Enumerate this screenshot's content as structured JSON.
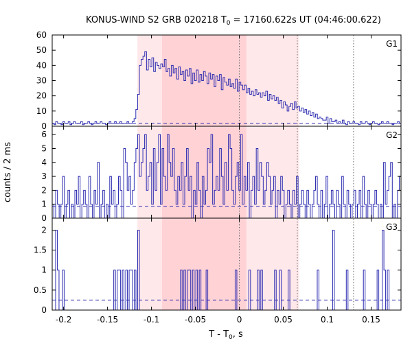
{
  "chart_data": {
    "type": "line",
    "title_main": "KONUS-WIND S2 GRB 020218 T",
    "title_sub": "0",
    "title_rest": " = 17160.622s UT (04:46:00.622)",
    "ylabel": "counts / 2 ms",
    "xlabel_main": "T - T",
    "xlabel_sub": "0",
    "xlabel_rest": ", s",
    "xlim": [
      -0.213,
      0.184
    ],
    "x_ticks": [
      -0.2,
      -0.15,
      -0.1,
      -0.05,
      0,
      0.05,
      0.1,
      0.15
    ],
    "x_tick_labels": [
      "-0.2",
      "-0.15",
      "-0.1",
      "-0.05",
      "0",
      "0.05",
      "0.1",
      "0.15"
    ],
    "shaded_regions": [
      {
        "from": -0.116,
        "to": 0.068,
        "color": "#ffe8ea"
      },
      {
        "from": -0.088,
        "to": 0.008,
        "color": "#ffd2d6"
      }
    ],
    "vertical_lines": [
      0,
      0.066,
      0.13
    ],
    "colors": {
      "data": "#2b2bb0",
      "background_level": "#2b2bb0",
      "markers": "#666666"
    },
    "panels": [
      {
        "name": "G1",
        "ylim": [
          0,
          60
        ],
        "y_ticks": [
          0,
          10,
          20,
          30,
          40,
          50,
          60
        ],
        "y_tick_labels": [
          "0",
          "10",
          "20",
          "30",
          "40",
          "50",
          "60"
        ],
        "background": 2,
        "values": [
          2,
          1,
          3,
          2,
          2,
          1,
          3,
          2,
          2,
          3,
          1,
          2,
          3,
          2,
          2,
          2,
          3,
          1,
          2,
          2,
          3,
          2,
          1,
          2,
          3,
          2,
          2,
          3,
          2,
          2,
          1,
          2,
          3,
          2,
          2,
          3,
          2,
          2,
          3,
          2,
          2,
          2,
          3,
          2,
          2,
          3,
          5,
          11,
          21,
          40,
          44,
          46,
          49,
          37,
          44,
          39,
          45,
          36,
          42,
          40,
          38,
          41,
          39,
          44,
          36,
          38,
          33,
          40,
          35,
          38,
          31,
          39,
          34,
          36,
          30,
          37,
          33,
          38,
          28,
          35,
          30,
          37,
          29,
          34,
          30,
          36,
          33,
          28,
          35,
          31,
          34,
          26,
          33,
          30,
          34,
          24,
          32,
          29,
          27,
          31,
          26,
          28,
          25,
          31,
          23,
          29,
          27,
          24,
          27,
          22,
          25,
          21,
          23,
          20,
          24,
          21,
          22,
          19,
          22,
          20,
          23,
          17,
          21,
          18,
          20,
          17,
          19,
          15,
          17,
          12,
          16,
          14,
          10,
          13,
          15,
          11,
          16,
          12,
          13,
          10,
          12,
          9,
          11,
          8,
          10,
          7,
          9,
          6,
          8,
          5,
          6,
          5,
          4,
          4,
          6,
          2,
          5,
          3,
          3,
          4,
          2,
          3,
          2,
          4,
          2,
          1,
          3,
          2,
          2,
          3,
          2,
          2,
          1,
          3,
          2,
          2,
          3,
          2,
          1,
          2,
          3,
          2,
          2,
          1,
          2,
          3,
          2,
          2,
          3,
          2,
          2,
          1,
          2,
          2,
          3,
          2
        ]
      },
      {
        "name": "G2",
        "ylim": [
          0,
          6.6
        ],
        "y_ticks": [
          0,
          1,
          2,
          3,
          4,
          5,
          6
        ],
        "y_tick_labels": [
          "0",
          "1",
          "2",
          "3",
          "4",
          "5",
          "6"
        ],
        "background": 0.85,
        "values": [
          1,
          0,
          2,
          1,
          0,
          1,
          3,
          0,
          1,
          2,
          0,
          1,
          0,
          2,
          1,
          3,
          0,
          1,
          2,
          1,
          0,
          3,
          1,
          0,
          2,
          1,
          4,
          0,
          1,
          2,
          0,
          1,
          0,
          3,
          1,
          2,
          0,
          1,
          3,
          2,
          0,
          5,
          4,
          2,
          3,
          1,
          2,
          4,
          5,
          6,
          3,
          4,
          5,
          6,
          2,
          3,
          4,
          1,
          5,
          2,
          4,
          6,
          1,
          5,
          3,
          2,
          6,
          4,
          3,
          5,
          2,
          1,
          3,
          2,
          4,
          1,
          3,
          5,
          2,
          3,
          0,
          2,
          1,
          4,
          2,
          0,
          3,
          1,
          2,
          5,
          4,
          6,
          1,
          2,
          3,
          2,
          5,
          3,
          1,
          4,
          2,
          6,
          5,
          2,
          1,
          3,
          4,
          2,
          6,
          1,
          3,
          2,
          4,
          0,
          2,
          3,
          1,
          5,
          2,
          4,
          3,
          1,
          2,
          4,
          3,
          1,
          2,
          3,
          0,
          2,
          1,
          3,
          2,
          0,
          1,
          2,
          1,
          0,
          2,
          1,
          3,
          0,
          1,
          2,
          1,
          0,
          2,
          1,
          0,
          1,
          2,
          3,
          1,
          0,
          2,
          0,
          1,
          3,
          0,
          1,
          2,
          1,
          0,
          2,
          1,
          0,
          3,
          1,
          0,
          2,
          1,
          0,
          1,
          2,
          0,
          1,
          2,
          0,
          3,
          1,
          0,
          2,
          1,
          0,
          1,
          2,
          1,
          0,
          1,
          0,
          4,
          1,
          2,
          3,
          4,
          0,
          1,
          0,
          2,
          3
        ]
      },
      {
        "name": "G3",
        "ylim": [
          0,
          2.3
        ],
        "y_ticks": [
          0,
          0.5,
          1,
          1.5,
          2
        ],
        "y_tick_labels": [
          "0",
          "0.5",
          "1",
          "1.5",
          "2"
        ],
        "background": 0.25,
        "values": [
          0,
          0,
          2,
          1,
          0,
          0,
          1,
          0,
          0,
          0,
          0,
          0,
          0,
          0,
          0,
          0,
          0,
          0,
          0,
          0,
          0,
          0,
          0,
          0,
          0,
          0,
          0,
          0,
          0,
          0,
          0,
          0,
          0,
          0,
          0,
          0,
          1,
          0,
          1,
          1,
          0,
          1,
          0,
          1,
          0,
          1,
          1,
          0,
          1,
          0,
          2,
          0,
          0,
          0,
          0,
          0,
          0,
          0,
          0,
          0,
          0,
          0,
          0,
          0,
          0,
          0,
          0,
          0,
          0,
          0,
          0,
          0,
          0,
          0,
          0,
          1,
          0,
          1,
          0,
          1,
          1,
          0,
          1,
          0,
          1,
          0,
          1,
          0,
          0,
          0,
          1,
          0,
          0,
          0,
          0,
          0,
          0,
          0,
          0,
          0,
          0,
          0,
          0,
          0,
          0,
          0,
          0,
          1,
          0,
          0,
          0,
          0,
          0,
          0,
          0,
          1,
          0,
          0,
          0,
          0,
          1,
          0,
          1,
          0,
          0,
          0,
          0,
          0,
          0,
          0,
          1,
          0,
          0,
          1,
          0,
          0,
          0,
          0,
          1,
          0,
          0,
          0,
          0,
          0,
          0,
          0,
          0,
          0,
          0,
          0,
          0,
          0,
          0,
          0,
          0,
          1,
          0,
          0,
          0,
          0,
          0,
          0,
          0,
          0,
          2,
          0,
          0,
          0,
          0,
          0,
          0,
          0,
          1,
          0,
          0,
          0,
          0,
          0,
          0,
          0,
          0,
          0,
          1,
          0,
          0,
          0,
          0,
          0,
          0,
          0,
          1,
          0,
          0,
          2,
          1,
          0,
          1,
          0,
          0,
          0,
          0,
          0,
          0,
          0
        ]
      }
    ]
  }
}
